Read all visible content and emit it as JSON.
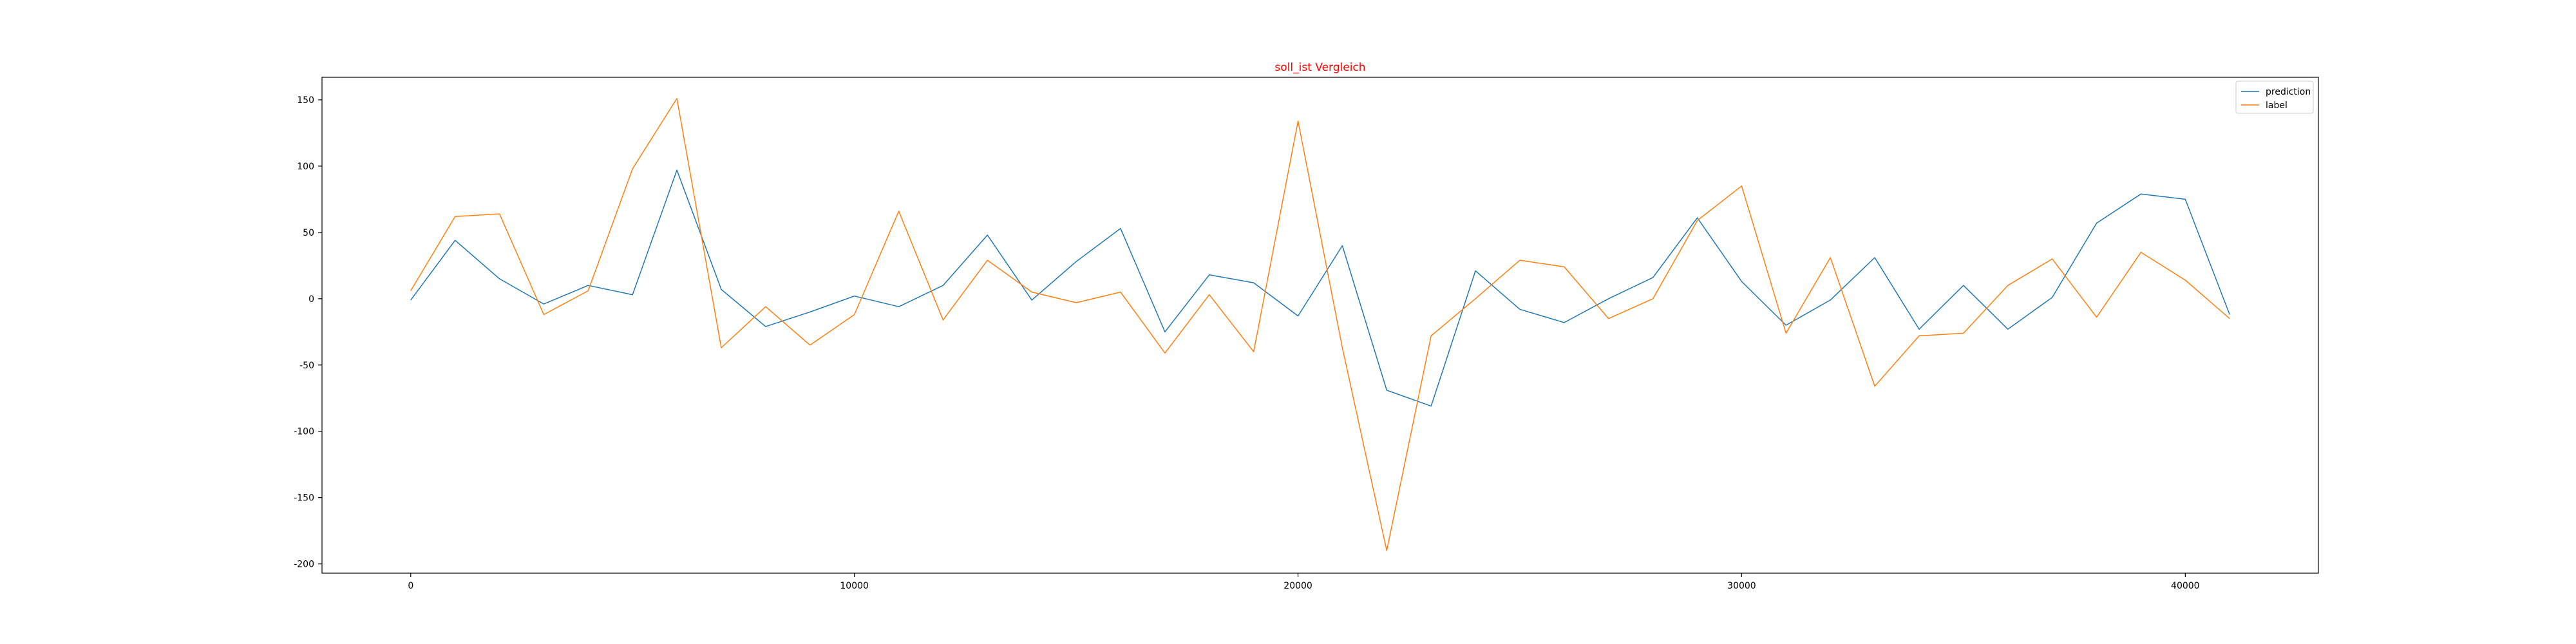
{
  "chart_data": {
    "type": "line",
    "title": "soll_ist Vergleich",
    "title_color": "#ff0000",
    "xlabel": "",
    "ylabel": "",
    "xlim": [
      -2000,
      43000
    ],
    "ylim": [
      -207,
      167
    ],
    "xticks": [
      0,
      10000,
      20000,
      30000,
      40000
    ],
    "yticks": [
      -200,
      -150,
      -100,
      -50,
      0,
      50,
      100,
      150
    ],
    "grid": false,
    "legend": "top-right",
    "x": [
      0,
      1000,
      2000,
      3000,
      4000,
      5000,
      6000,
      7000,
      8000,
      9000,
      10000,
      11000,
      12000,
      13000,
      14000,
      15000,
      16000,
      17000,
      18000,
      19000,
      20000,
      21000,
      22000,
      23000,
      24000,
      25000,
      26000,
      27000,
      28000,
      29000,
      30000,
      31000,
      32000,
      33000,
      34000,
      35000,
      36000,
      37000,
      38000,
      39000,
      40000,
      41000
    ],
    "series": [
      {
        "name": "prediction",
        "color": "#1f77b4",
        "values": [
          -1,
          44,
          15,
          -4,
          10,
          3,
          97,
          7,
          -21,
          -10,
          2,
          -6,
          10,
          48,
          -1,
          28,
          53,
          -25,
          18,
          12,
          -13,
          40,
          -69,
          -81,
          21,
          -8,
          -18,
          0,
          16,
          61,
          13,
          -20,
          -1,
          31,
          -23,
          10,
          -23,
          1,
          57,
          79,
          75,
          -12
        ]
      },
      {
        "name": "label",
        "color": "#ff7f0e",
        "values": [
          6,
          62,
          64,
          -12,
          6,
          98,
          151,
          -37,
          -6,
          -35,
          -12,
          66,
          -16,
          29,
          5,
          -3,
          5,
          -41,
          3,
          -40,
          134,
          -37,
          -190,
          -28,
          0,
          29,
          24,
          -15,
          0,
          59,
          85,
          -26,
          31,
          -66,
          -28,
          -26,
          10,
          30,
          -14,
          35,
          14,
          -15
        ]
      }
    ]
  }
}
